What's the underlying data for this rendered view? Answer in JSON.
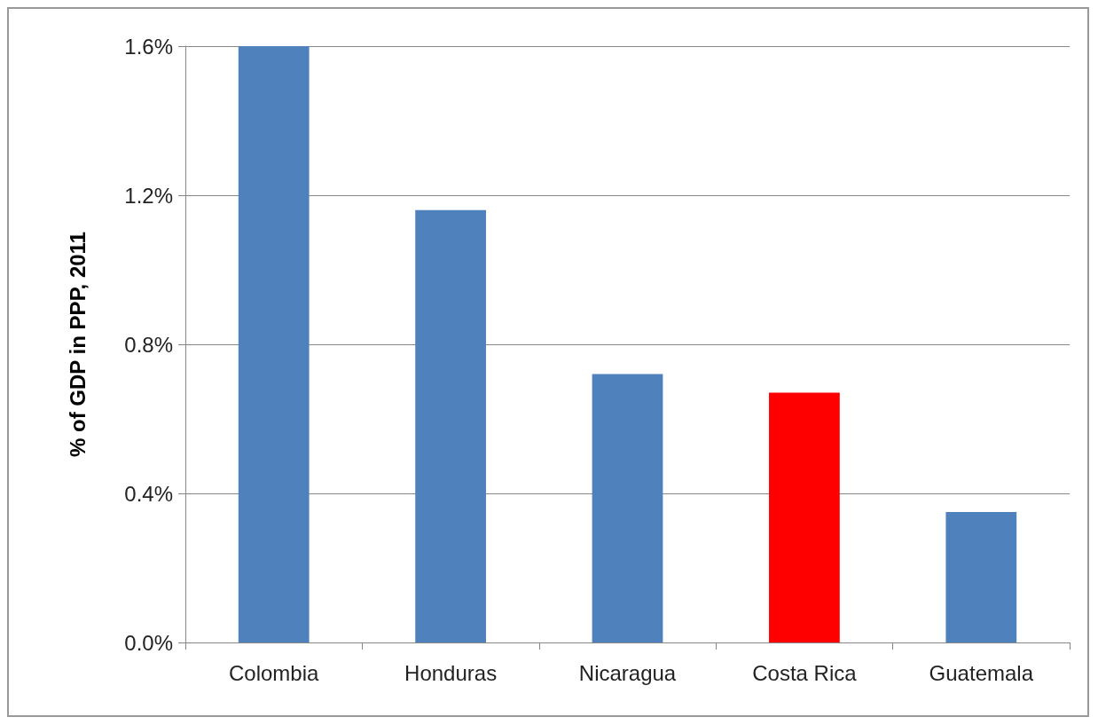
{
  "chart_data": {
    "type": "bar",
    "ylabel": "% of GDP in PPP, 2011",
    "categories": [
      "Colombia",
      "Honduras",
      "Nicaragua",
      "Costa Rica",
      "Guatemala"
    ],
    "values": [
      1.6,
      1.16,
      0.72,
      0.67,
      0.35
    ],
    "colors": [
      "#4f81bd",
      "#4f81bd",
      "#4f81bd",
      "#ff0000",
      "#4f81bd"
    ],
    "ylim": [
      0,
      1.6
    ],
    "yticks": [
      {
        "value": 0,
        "label": "0.0%"
      },
      {
        "value": 0.4,
        "label": "0.4%"
      },
      {
        "value": 0.8,
        "label": "0.8%"
      },
      {
        "value": 1.2,
        "label": "1.2%"
      },
      {
        "value": 1.6,
        "label": "1.6%"
      }
    ],
    "grid": "y"
  }
}
